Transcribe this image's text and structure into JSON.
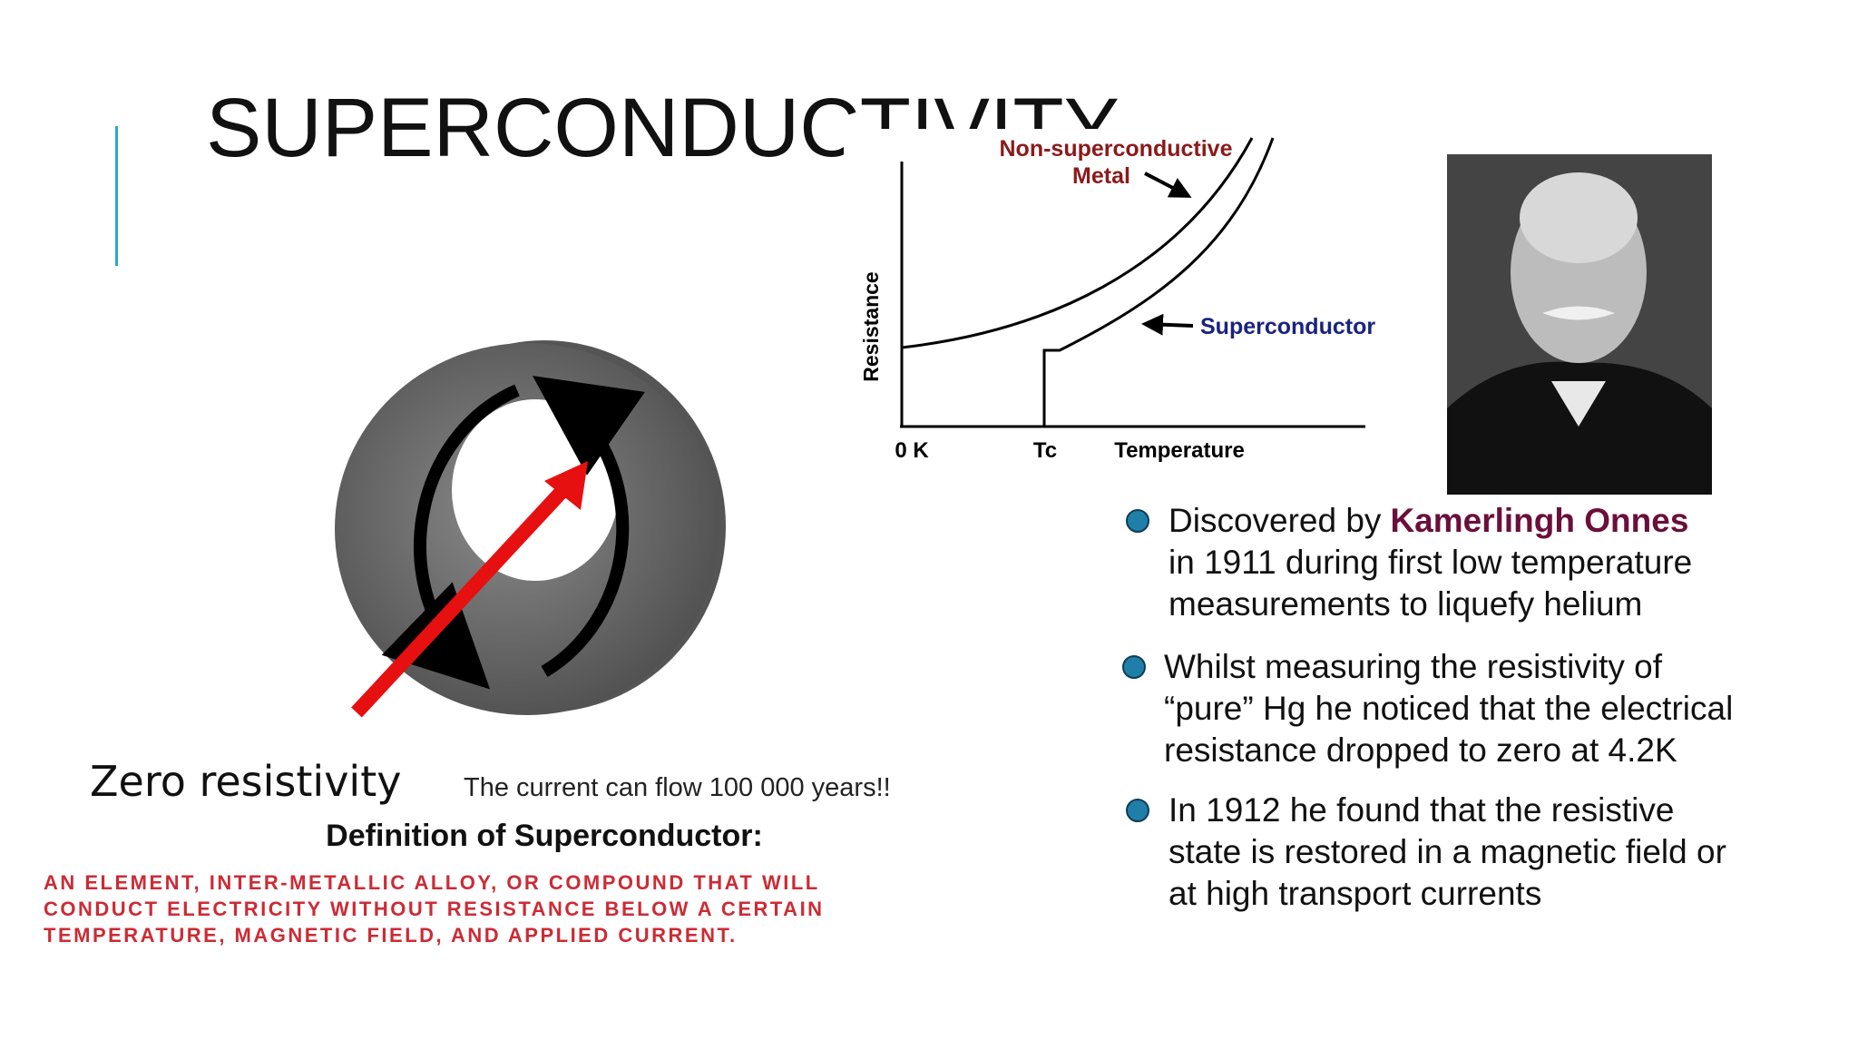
{
  "title": "SUPERCONDUCTIVITY",
  "graph": {
    "metal_label": [
      "Non-superconductive",
      "Metal"
    ],
    "superconductor_label": "Superconductor",
    "y_axis": "Resistance",
    "x_labels": [
      "0 K",
      "Tc",
      "Temperature"
    ]
  },
  "zero_resistivity": "Zero resistivity",
  "current_note": "The current can flow 100 000 years!!",
  "definition": {
    "heading": "Definition of Superconductor:",
    "lines": [
      "AN ELEMENT, INTER-METALLIC ALLOY, OR COMPOUND THAT WILL",
      "CONDUCT ELECTRICITY WITHOUT RESISTANCE BELOW A CERTAIN",
      "TEMPERATURE, MAGNETIC FIELD, AND APPLIED CURRENT."
    ]
  },
  "bullets": [
    {
      "intro": "Discovered by",
      "name": "Kamerlingh Onnes",
      "lines": [
        "in 1911 during first low temperature",
        "measurements to liquefy helium"
      ]
    },
    {
      "lines": [
        "Whilst measuring the resistivity of",
        "“pure” Hg he noticed that the electrical",
        "resistance dropped to zero at 4.2K"
      ]
    },
    {
      "lines": [
        "In 1912 he found that the resistive",
        "state is restored in a magnetic field or",
        "at high transport currents"
      ]
    }
  ]
}
